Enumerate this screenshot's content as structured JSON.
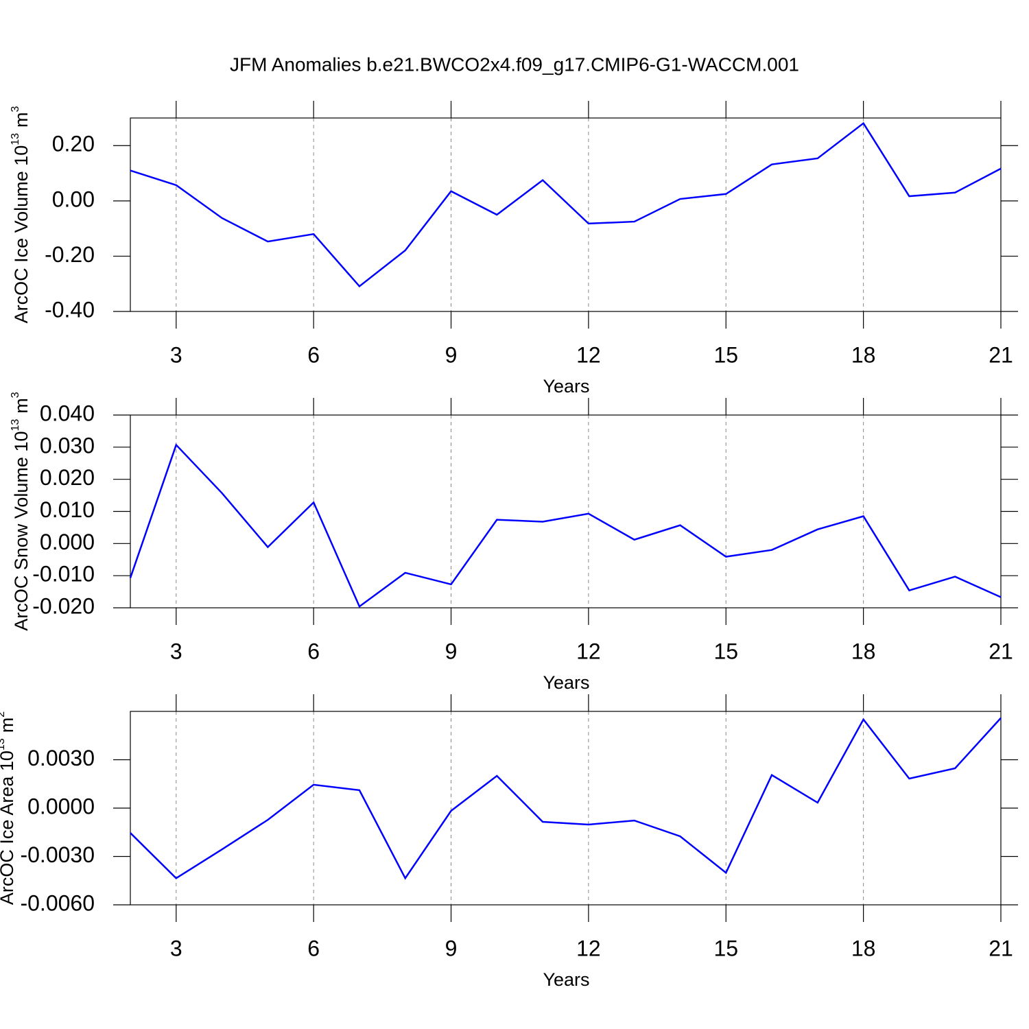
{
  "title": "JFM Anomalies b.e21.BWCO2x4.f09_g17.CMIP6-G1-WACCM.001",
  "chart_data": [
    {
      "type": "line",
      "xlabel": "Years",
      "ylabel": {
        "text": "ArcOC Ice Volume 10",
        "exponent": "13",
        "unit": "m",
        "unit_exponent": "3"
      },
      "x": [
        2,
        3,
        4,
        5,
        6,
        7,
        8,
        9,
        10,
        11,
        12,
        13,
        14,
        15,
        16,
        17,
        18,
        19,
        20,
        21
      ],
      "values": [
        0.11,
        0.057,
        -0.062,
        -0.147,
        -0.12,
        -0.309,
        -0.179,
        0.035,
        -0.05,
        0.075,
        -0.082,
        -0.075,
        0.007,
        0.025,
        0.132,
        0.154,
        0.281,
        0.017,
        0.03,
        0.117
      ],
      "color": "#0000ff",
      "xlim": [
        2,
        21
      ],
      "xticks": [
        3,
        6,
        9,
        12,
        15,
        18,
        21
      ],
      "ylim": [
        -0.4,
        0.3
      ],
      "yticks": [
        {
          "value": -0.4,
          "label": "-0.40"
        },
        {
          "value": -0.2,
          "label": "-0.20"
        },
        {
          "value": 0,
          "label": "0.00"
        },
        {
          "value": 0.2,
          "label": "0.20"
        }
      ],
      "grid": "x"
    },
    {
      "type": "line",
      "xlabel": "Years",
      "ylabel": {
        "text": "ArcOC Snow Volume 10",
        "exponent": "13",
        "unit": "m",
        "unit_exponent": "3"
      },
      "x": [
        2,
        3,
        4,
        5,
        6,
        7,
        8,
        9,
        10,
        11,
        12,
        13,
        14,
        15,
        16,
        17,
        18,
        19,
        20,
        21
      ],
      "values": [
        -0.0107,
        0.0307,
        0.0157,
        -0.0011,
        0.0128,
        -0.0196,
        -0.0091,
        -0.0127,
        0.0074,
        0.0068,
        0.0093,
        0.0012,
        0.0057,
        -0.0041,
        -0.002,
        0.0044,
        0.0085,
        -0.0146,
        -0.0103,
        -0.0167
      ],
      "color": "#0000ff",
      "xlim": [
        2,
        21
      ],
      "xticks": [
        3,
        6,
        9,
        12,
        15,
        18,
        21
      ],
      "ylim": [
        -0.02,
        0.04
      ],
      "yticks": [
        {
          "value": -0.02,
          "label": "-0.020"
        },
        {
          "value": -0.01,
          "label": "-0.010"
        },
        {
          "value": 0,
          "label": "0.000"
        },
        {
          "value": 0.01,
          "label": "0.010"
        },
        {
          "value": 0.02,
          "label": "0.020"
        },
        {
          "value": 0.03,
          "label": "0.030"
        },
        {
          "value": 0.04,
          "label": "0.040"
        }
      ],
      "grid": "x"
    },
    {
      "type": "line",
      "xlabel": "Years",
      "ylabel": {
        "text": "ArcOC Ice Area 10",
        "exponent": "13",
        "unit": "m",
        "unit_exponent": "2"
      },
      "x": [
        2,
        3,
        4,
        5,
        6,
        7,
        8,
        9,
        10,
        11,
        12,
        13,
        14,
        15,
        16,
        17,
        18,
        19,
        20,
        21
      ],
      "values": [
        -0.00154,
        -0.00435,
        -0.00256,
        -0.00073,
        0.00145,
        0.00111,
        -0.00435,
        -0.00017,
        0.002,
        -0.00085,
        -0.00102,
        -0.00077,
        -0.00175,
        -0.00401,
        0.00205,
        0.00034,
        0.0055,
        0.00183,
        0.00247,
        0.00559
      ],
      "color": "#0000ff",
      "xlim": [
        2,
        21
      ],
      "xticks": [
        3,
        6,
        9,
        12,
        15,
        18,
        21
      ],
      "ylim": [
        -0.006,
        0.006
      ],
      "yticks": [
        {
          "value": -0.006,
          "label": "-0.0060"
        },
        {
          "value": -0.003,
          "label": "-0.0030"
        },
        {
          "value": 0,
          "label": "0.0000"
        },
        {
          "value": 0.003,
          "label": "0.0030"
        }
      ],
      "grid": "x"
    }
  ]
}
